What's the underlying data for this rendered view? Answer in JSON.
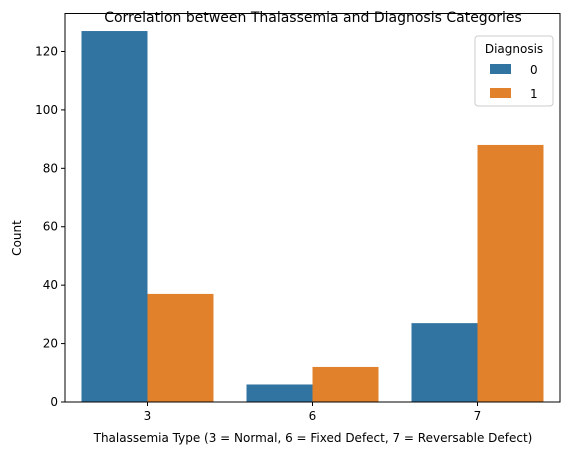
{
  "colors": {
    "series_0": "#3274a1",
    "series_1": "#e1812c",
    "axis": "#000000",
    "legend_border": "#cccccc"
  },
  "chart_data": {
    "type": "bar",
    "title": "Correlation between Thalassemia and Diagnosis Categories",
    "xlabel": "Thalassemia Type (3 = Normal, 6 = Fixed Defect, 7 = Reversable Defect)",
    "ylabel": "Count",
    "categories": [
      "3",
      "6",
      "7"
    ],
    "series": [
      {
        "name": "0",
        "values": [
          127,
          6,
          27
        ]
      },
      {
        "name": "1",
        "values": [
          37,
          12,
          88
        ]
      }
    ],
    "ylim": [
      0,
      133
    ],
    "yticks": [
      0,
      20,
      40,
      60,
      80,
      100,
      120
    ],
    "grid": false,
    "legend": {
      "title": "Diagnosis",
      "placement": "top-right"
    }
  }
}
